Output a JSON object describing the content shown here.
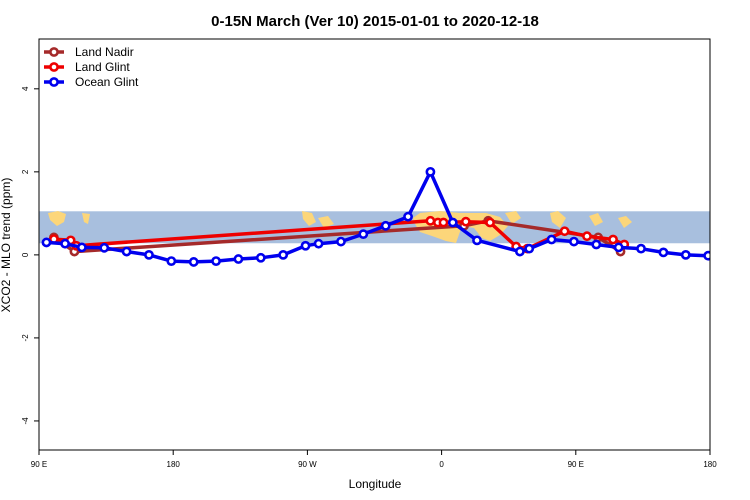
{
  "chart_data": {
    "type": "line",
    "title": "0-15N March (Ver 10)   2015-01-01 to 2020-12-18",
    "xlabel": "Longitude",
    "ylabel": "XCO2 - MLO trend (ppm)",
    "xlim": [
      90,
      450
    ],
    "ylim": [
      -4.7,
      5.2
    ],
    "band": {
      "y_min": 0.28,
      "y_max": 1.05,
      "color": "#a8bfde",
      "land_color": "#fcd67a"
    },
    "x_ticks": [
      {
        "value": 90,
        "label": "90 E"
      },
      {
        "value": 162,
        "label": "180"
      },
      {
        "value": 234,
        "label": "90 W"
      },
      {
        "value": 306,
        "label": "0"
      },
      {
        "value": 378,
        "label": "90 E"
      },
      {
        "value": 450,
        "label": "180"
      }
    ],
    "y_ticks": [
      {
        "value": 4,
        "label": "4"
      },
      {
        "value": 2,
        "label": "2"
      },
      {
        "value": 0,
        "label": "0"
      },
      {
        "value": -2,
        "label": "-2"
      },
      {
        "value": -4,
        "label": "-4"
      }
    ],
    "legend": {
      "position": "top-left"
    },
    "series": [
      {
        "name": "Land Nadir",
        "color": "#a52a2a",
        "x": [
          98,
          109,
          318,
          331,
          390,
          402
        ],
        "y": [
          0.42,
          0.08,
          0.7,
          0.82,
          0.42,
          0.08
        ]
      },
      {
        "name": "Land Glint",
        "color": "#ee0000",
        "x": [
          98,
          107,
          110,
          300,
          304,
          307,
          319,
          332,
          346,
          352,
          372,
          384,
          398,
          404
        ],
        "y": [
          0.38,
          0.35,
          0.22,
          0.82,
          0.78,
          0.78,
          0.8,
          0.78,
          0.2,
          0.15,
          0.57,
          0.45,
          0.37,
          0.25
        ]
      },
      {
        "name": "Ocean Glint",
        "color": "#0000ee",
        "x": [
          94,
          104,
          113,
          125,
          137,
          149,
          161,
          173,
          185,
          197,
          209,
          221,
          233,
          240,
          252,
          264,
          276,
          288,
          300,
          312,
          325,
          348,
          353,
          365,
          377,
          389,
          401,
          413,
          425,
          437,
          449
        ],
        "y": [
          0.3,
          0.27,
          0.18,
          0.17,
          0.08,
          0.0,
          -0.15,
          -0.17,
          -0.15,
          -0.1,
          -0.07,
          0.0,
          0.22,
          0.27,
          0.32,
          0.5,
          0.7,
          0.92,
          2.0,
          0.78,
          0.35,
          0.08,
          0.15,
          0.37,
          0.32,
          0.25,
          0.18,
          0.15,
          0.06,
          0.0,
          -0.02
        ]
      }
    ]
  }
}
